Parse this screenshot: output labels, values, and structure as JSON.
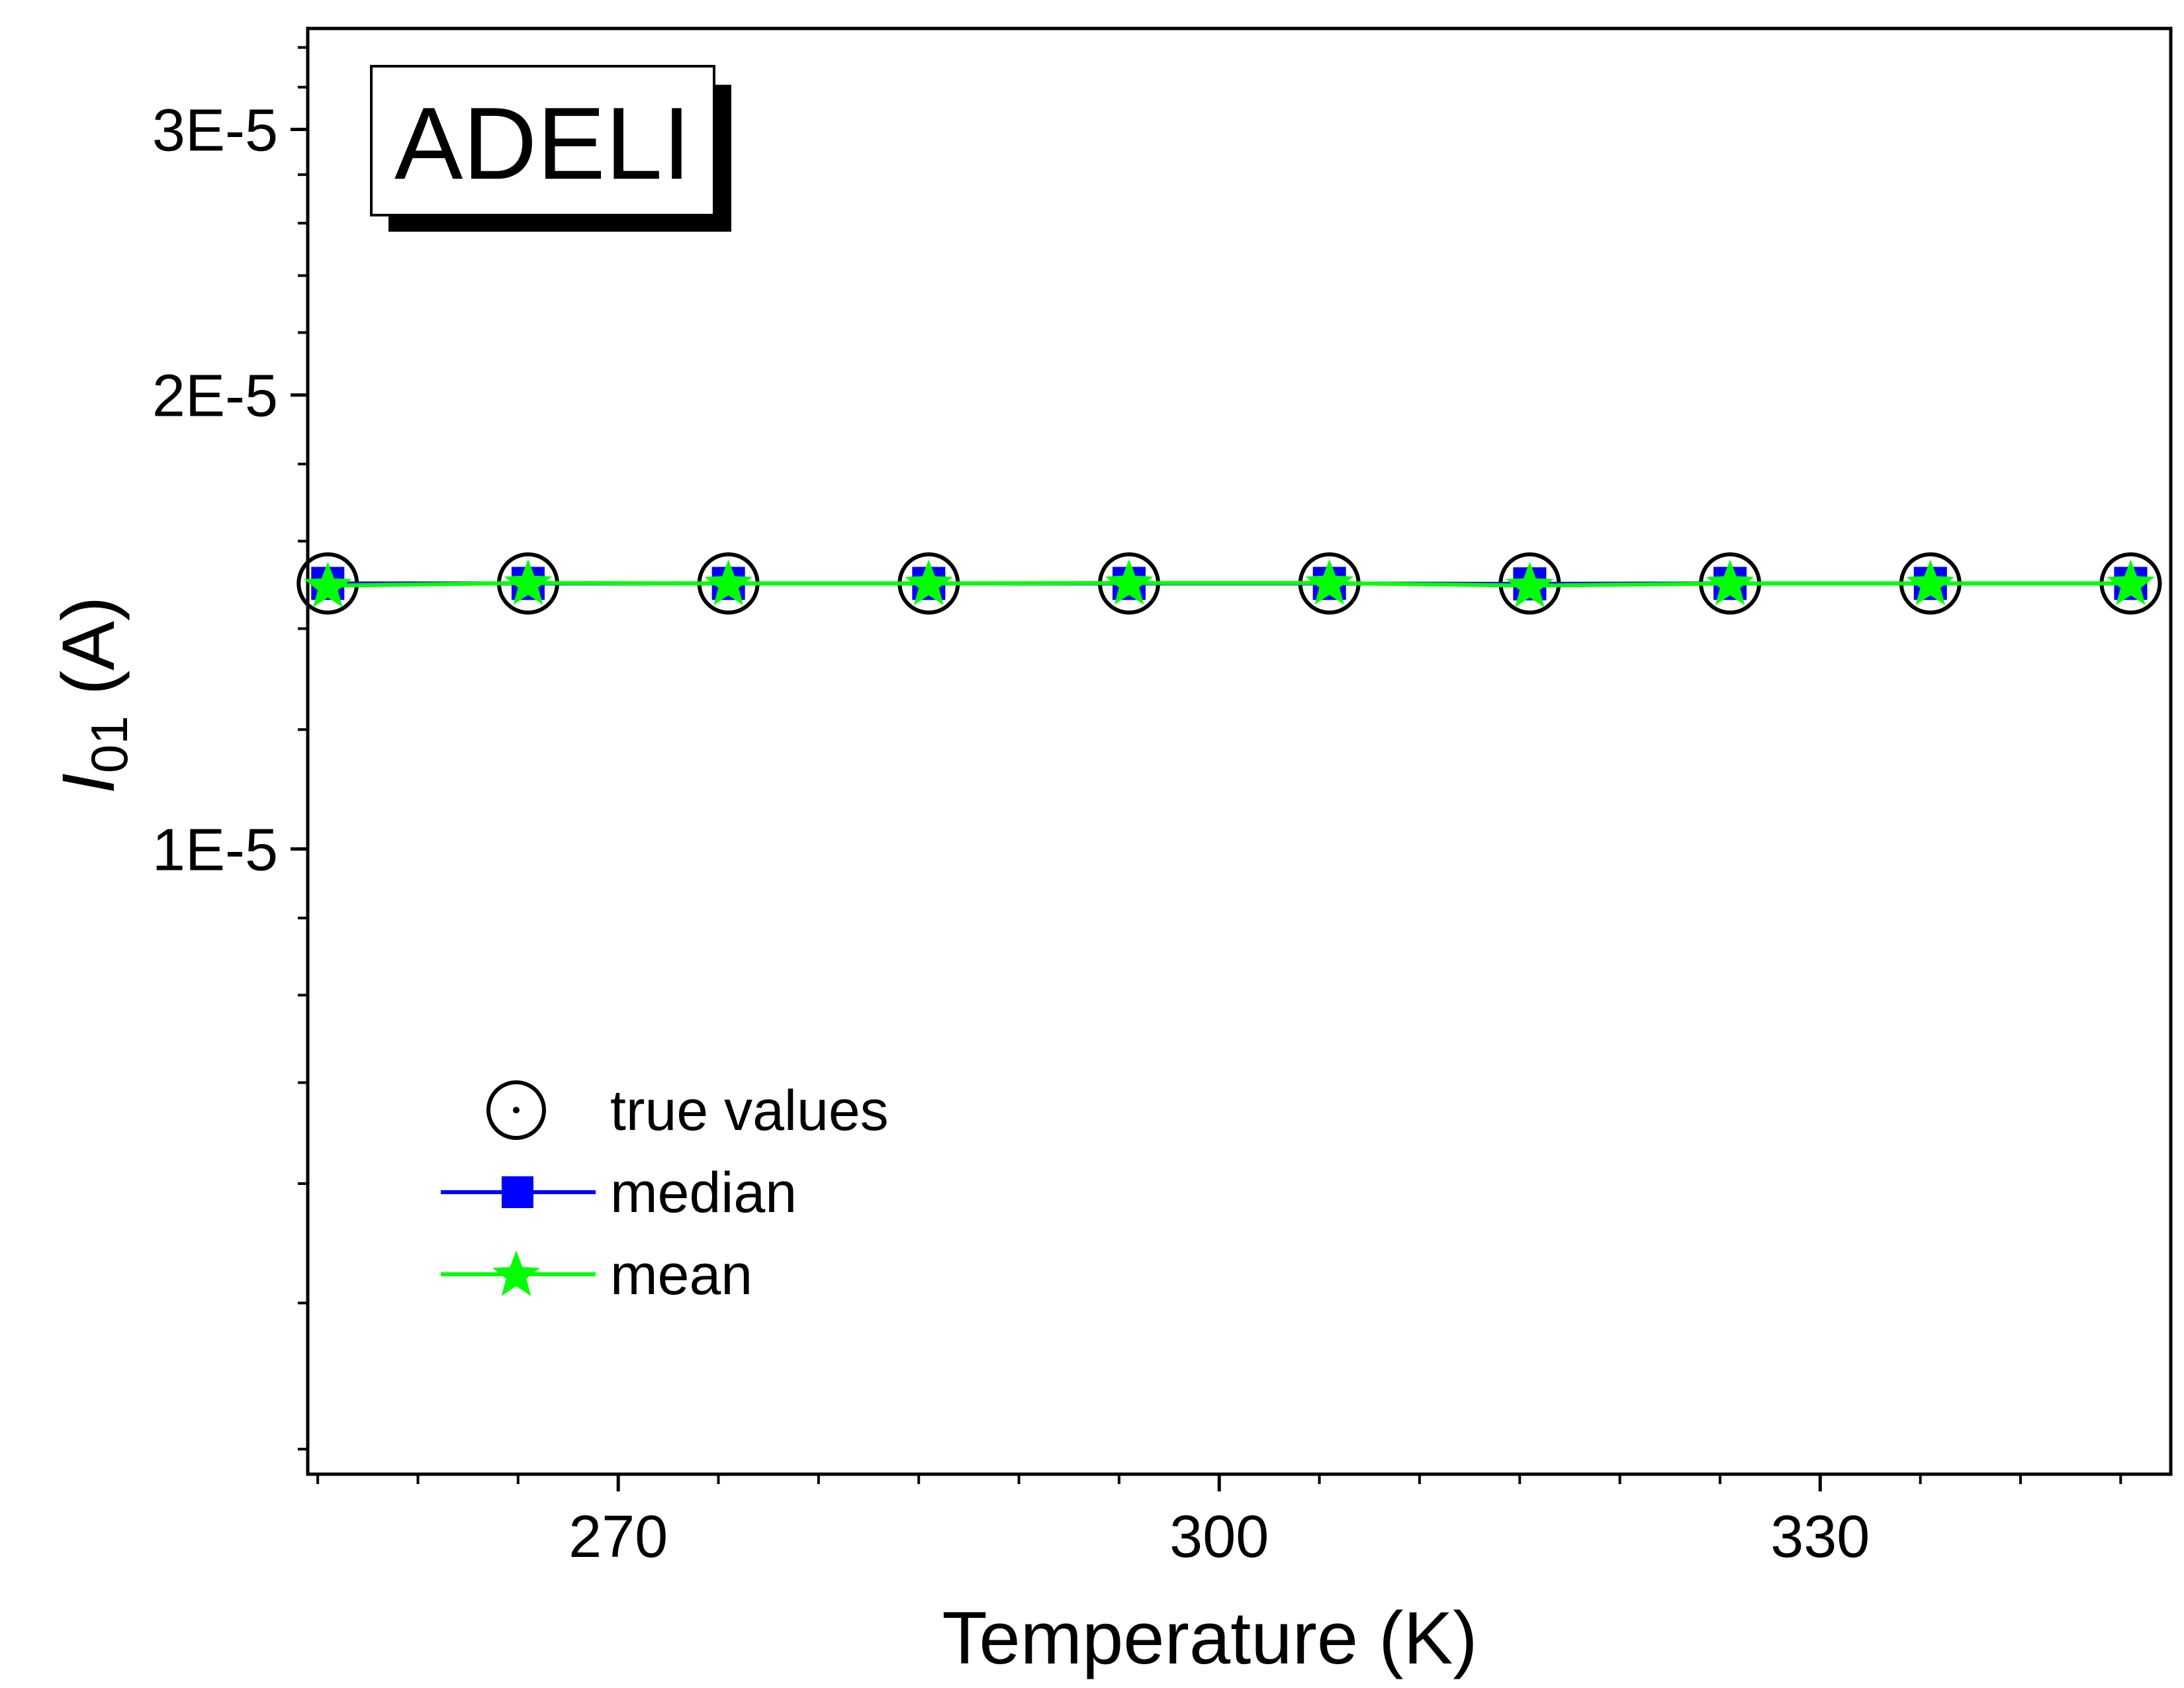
{
  "chart_data": {
    "type": "line",
    "badge": "ADELI",
    "xlabel": "Temperature (K)",
    "ylabel_main": "I",
    "ylabel_sub": "01",
    "ylabel_unit": " (A)",
    "xlim": [
      254.5,
      347.5
    ],
    "ylim": [
      3.85e-06,
      3.5e-05
    ],
    "yscale": "log",
    "x_ticks": [
      270,
      300,
      330
    ],
    "x_tick_labels": [
      "270",
      "300",
      "330"
    ],
    "y_ticks": [
      1e-05,
      2e-05,
      3e-05
    ],
    "y_tick_labels": [
      "1E-5",
      "2E-5",
      "3E-5"
    ],
    "x": [
      255.5,
      265.5,
      275.5,
      285.5,
      295.5,
      305.5,
      315.5,
      325.5,
      335.5,
      345.5
    ],
    "series": [
      {
        "name": "true values",
        "marker": "circle-dot",
        "line": false,
        "color": "#000000",
        "values": [
          1.5e-05,
          1.5e-05,
          1.5e-05,
          1.5e-05,
          1.5e-05,
          1.5e-05,
          1.5e-05,
          1.5e-05,
          1.5e-05,
          1.5e-05
        ]
      },
      {
        "name": "median",
        "marker": "square",
        "line": true,
        "color": "#0000ff",
        "values": [
          1.5e-05,
          1.5e-05,
          1.5e-05,
          1.5e-05,
          1.5e-05,
          1.5e-05,
          1.499e-05,
          1.5e-05,
          1.5e-05,
          1.5e-05
        ]
      },
      {
        "name": "mean",
        "marker": "star",
        "line": true,
        "color": "#00ff00",
        "values": [
          1.495e-05,
          1.501e-05,
          1.5e-05,
          1.5e-05,
          1.501e-05,
          1.501e-05,
          1.495e-05,
          1.5e-05,
          1.5e-05,
          1.5e-05
        ]
      }
    ],
    "legend_position": "lower-left",
    "grid": false
  }
}
